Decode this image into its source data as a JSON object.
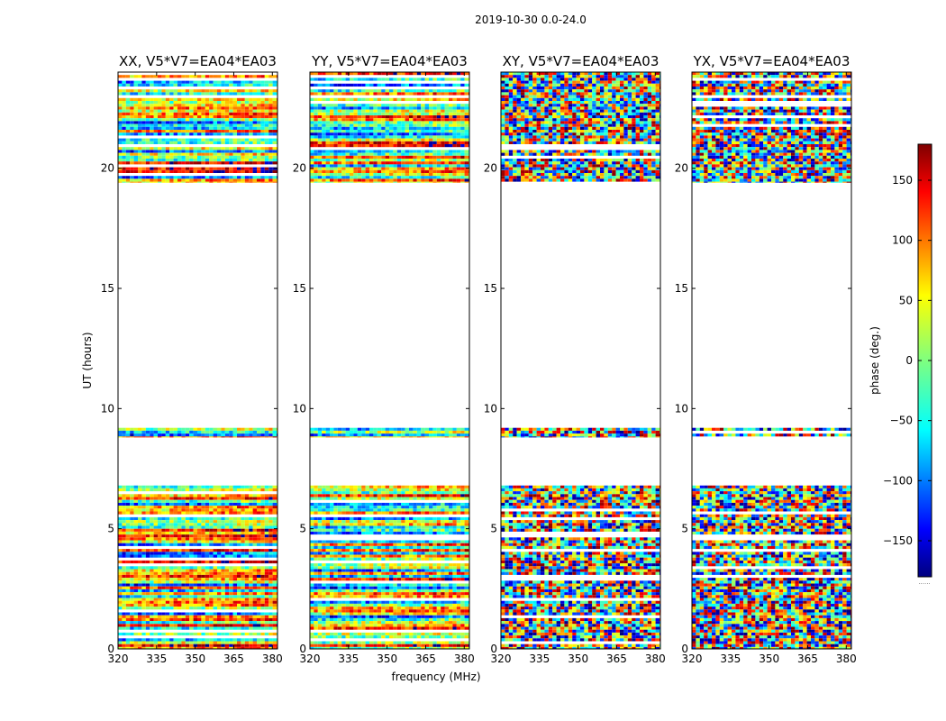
{
  "chart_data": {
    "type": "heatmap",
    "suptitle": "2019-10-30 0.0-24.0",
    "xlabel": "frequency (MHz)",
    "ylabel": "UT (hours)",
    "xlim": [
      320,
      382
    ],
    "ylim": [
      0,
      24
    ],
    "xticks": [
      320,
      335,
      350,
      365,
      380
    ],
    "yticks": [
      0,
      5,
      10,
      15,
      20
    ],
    "panels": [
      {
        "title": "XX, V5*V7=EA04*EA03",
        "pattern": "parallel"
      },
      {
        "title": "YY, V5*V7=EA04*EA03",
        "pattern": "parallel"
      },
      {
        "title": "XY, V5*V7=EA04*EA03",
        "pattern": "cross"
      },
      {
        "title": "YX, V5*V7=EA04*EA03",
        "pattern": "cross"
      }
    ],
    "data_time_ranges_hours": [
      [
        0.0,
        6.8
      ],
      [
        8.8,
        9.2
      ],
      [
        19.4,
        24.0
      ]
    ],
    "colorbar": {
      "label": "phase (deg.)",
      "range": [
        -180,
        180
      ],
      "ticks": [
        150,
        100,
        50,
        0,
        -50,
        -100,
        -150
      ],
      "tick_labels": [
        "150",
        "100",
        "50",
        "0",
        "−50",
        "−100",
        "−150"
      ],
      "colormap": "jet",
      "footnote": "......"
    }
  }
}
